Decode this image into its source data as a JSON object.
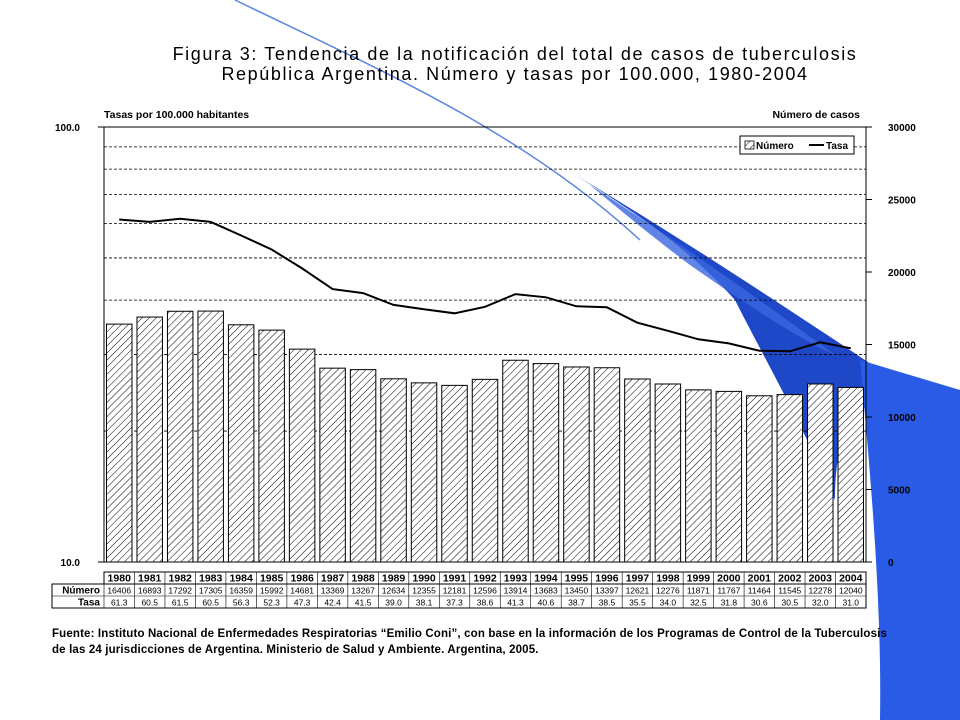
{
  "title_line1": "Figura 3: Tendencia de la notificación del total de casos de tuberculosis",
  "title_line2": "República Argentina. Número y tasas por 100.000, 1980-2004",
  "source_line1": "Fuente: Instituto Nacional de Enfermedades Respiratorias “Emilio Coni”, con base en la información de los Programas de Control de la Tuberculosis",
  "source_line2": "de las 24 jurisdicciones de Argentina. Ministerio de Salud y Ambiente. Argentina, 2005.",
  "colors": {
    "accent_blue": "#1f48c9",
    "bar_fill": "#ffffff",
    "bar_stroke": "#000000",
    "line": "#000000"
  },
  "chart_data": {
    "type": "bar",
    "categories": [
      "1980",
      "1981",
      "1982",
      "1983",
      "1984",
      "1985",
      "1986",
      "1987",
      "1988",
      "1989",
      "1990",
      "1991",
      "1992",
      "1993",
      "1994",
      "1995",
      "1996",
      "1997",
      "1998",
      "1999",
      "2000",
      "2001",
      "2002",
      "2003",
      "2004"
    ],
    "series": [
      {
        "name": "Número",
        "type": "bar",
        "axis": "right",
        "values": [
          16406,
          16893,
          17292,
          17305,
          16359,
          15992,
          14681,
          13369,
          13267,
          12634,
          12355,
          12181,
          12596,
          13914,
          13683,
          13450,
          13397,
          12621,
          12276,
          11871,
          11767,
          11464,
          11545,
          12278,
          12040
        ]
      },
      {
        "name": "Tasa",
        "type": "line",
        "axis": "left",
        "values": [
          61.3,
          60.5,
          61.5,
          60.5,
          56.3,
          52.3,
          47.3,
          42.4,
          41.5,
          39.0,
          38.1,
          37.3,
          38.6,
          41.3,
          40.6,
          38.7,
          38.5,
          35.5,
          34.0,
          32.5,
          31.8,
          30.6,
          30.5,
          32.0,
          31.0
        ]
      }
    ],
    "left_axis": {
      "label": "Tasas por 100.000 habitantes",
      "scale": "log",
      "range": [
        10.0,
        100.0
      ],
      "tick_labels": [
        "100.0",
        "10.0"
      ]
    },
    "right_axis": {
      "label": "Número de casos",
      "range": [
        0,
        30000
      ],
      "ticks": [
        0,
        5000,
        10000,
        15000,
        20000,
        25000,
        30000
      ]
    },
    "legend": {
      "position": "top-right",
      "entries": [
        "Número",
        "Tasa"
      ]
    },
    "table_row_labels": [
      "Número",
      "Tasa"
    ],
    "grid": "dashed horizontal"
  }
}
